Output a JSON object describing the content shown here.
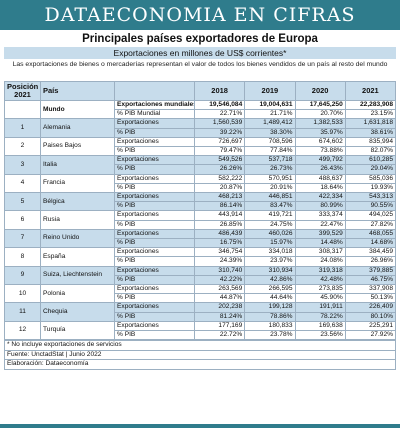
{
  "banner": "DATAECONOMIA EN CIFRAS",
  "title": "Principales países exportadores de Europa",
  "subtitle": "Exportaciones en millones de US$ corrientes*",
  "note": "Las exportaciones de bienes o mercaderías representan el valor de todos los bienes vendidos de un país al resto del mundo",
  "header": {
    "pos": "Posición 2021",
    "pais": "País",
    "years": [
      "2018",
      "2019",
      "2020",
      "2021"
    ]
  },
  "world": {
    "pais": "Mundo",
    "rows": [
      {
        "ind": "Exportaciones mundiales",
        "vals": [
          "19,546,084",
          "19,004,631",
          "17,645,250",
          "22,283,908"
        ]
      },
      {
        "ind": "% PIB Mundial",
        "vals": [
          "22.71%",
          "21.71%",
          "20.70%",
          "23.15%"
        ]
      }
    ]
  },
  "countries": [
    {
      "pos": "1",
      "pais": "Alemania",
      "exp": [
        "1,560,539",
        "1,489,412",
        "1,382,533",
        "1,631,818"
      ],
      "pib": [
        "39.22%",
        "38.30%",
        "35.97%",
        "38.61%"
      ]
    },
    {
      "pos": "2",
      "pais": "Paises Bajos",
      "exp": [
        "726,697",
        "708,596",
        "674,602",
        "835,994"
      ],
      "pib": [
        "79.47%",
        "77.84%",
        "73.88%",
        "82.07%"
      ]
    },
    {
      "pos": "3",
      "pais": "Italia",
      "exp": [
        "549,526",
        "537,718",
        "499,792",
        "610,285"
      ],
      "pib": [
        "26.26%",
        "26.73%",
        "26.43%",
        "29.04%"
      ]
    },
    {
      "pos": "4",
      "pais": "Francia",
      "exp": [
        "582,222",
        "570,951",
        "488,637",
        "585,036"
      ],
      "pib": [
        "20.87%",
        "20.91%",
        "18.64%",
        "19.93%"
      ]
    },
    {
      "pos": "5",
      "pais": "Bélgica",
      "exp": [
        "468,213",
        "446,851",
        "422,334",
        "543,313"
      ],
      "pib": [
        "86.14%",
        "83.47%",
        "80.99%",
        "90.55%"
      ]
    },
    {
      "pos": "6",
      "pais": "Rusia",
      "exp": [
        "443,914",
        "419,721",
        "333,374",
        "494,025"
      ],
      "pib": [
        "26.85%",
        "24.75%",
        "22.47%",
        "27.82%"
      ]
    },
    {
      "pos": "7",
      "pais": "Reino Unido",
      "exp": [
        "486,439",
        "460,026",
        "399,529",
        "468,055"
      ],
      "pib": [
        "16.75%",
        "15.97%",
        "14.48%",
        "14.68%"
      ]
    },
    {
      "pos": "8",
      "pais": "España",
      "exp": [
        "346,754",
        "334,018",
        "308,317",
        "384,459"
      ],
      "pib": [
        "24.39%",
        "23.97%",
        "24.08%",
        "26.96%"
      ]
    },
    {
      "pos": "9",
      "pais": "Suiza, Liechtenstein",
      "exp": [
        "310,740",
        "310,934",
        "319,318",
        "379,885"
      ],
      "pib": [
        "42.22%",
        "42.86%",
        "42.48%",
        "46.75%"
      ]
    },
    {
      "pos": "10",
      "pais": "Polonia",
      "exp": [
        "263,569",
        "266,595",
        "273,835",
        "337,908"
      ],
      "pib": [
        "44.87%",
        "44.64%",
        "45.90%",
        "50.13%"
      ]
    },
    {
      "pos": "11",
      "pais": "Chequia",
      "exp": [
        "202,238",
        "199,128",
        "191,911",
        "226,409"
      ],
      "pib": [
        "81.24%",
        "78.86%",
        "78.22%",
        "80.10%"
      ]
    },
    {
      "pos": "12",
      "pais": "Turquía",
      "exp": [
        "177,169",
        "180,833",
        "169,638",
        "225,291"
      ],
      "pib": [
        "22.72%",
        "23.78%",
        "23.56%",
        "27.92%"
      ]
    }
  ],
  "labels": {
    "exp": "Exportaciones",
    "pib": "% PIB"
  },
  "footer": {
    "note": "* No incluye exportaciones de servicios",
    "source": "Fuente: UnctadStat  |  Junio 2022",
    "credit": "Elaboración: Dataeconomía"
  }
}
